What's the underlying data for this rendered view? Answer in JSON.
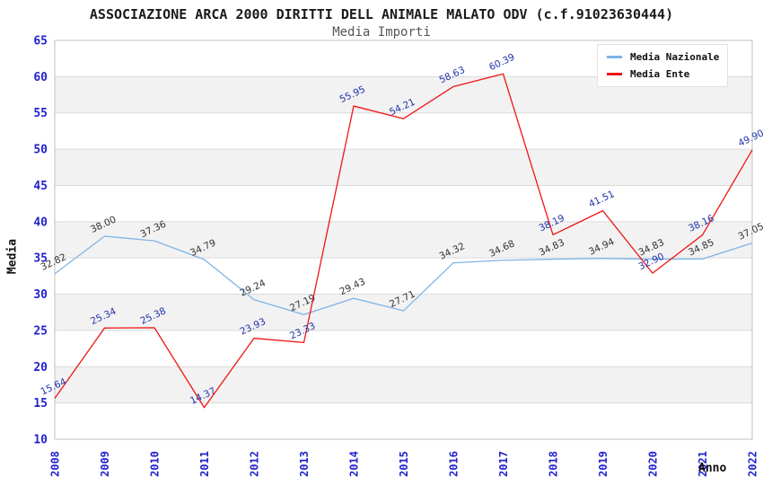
{
  "chart": {
    "title": "ASSOCIAZIONE ARCA 2000 DIRITTI DELL ANIMALE MALATO ODV (c.f.91023630444)",
    "subtitle": "Media Importi",
    "ylabel": "Media",
    "xlabel": "Anno"
  },
  "legend": {
    "items": [
      {
        "label": "Media Nazionale"
      },
      {
        "label": "Media Ente"
      }
    ]
  },
  "chart_data": {
    "type": "line",
    "title": "ASSOCIAZIONE ARCA 2000 DIRITTI DELL ANIMALE MALATO ODV (c.f.91023630444)",
    "subtitle": "Media Importi",
    "xlabel": "Anno",
    "ylabel": "Media",
    "x": [
      2008,
      2009,
      2010,
      2011,
      2012,
      2013,
      2014,
      2015,
      2016,
      2017,
      2018,
      2019,
      2020,
      2021,
      2022
    ],
    "series": [
      {
        "name": "Media Nazionale",
        "color": "#7eb4e7",
        "label_color": "#333333",
        "values": [
          32.82,
          38.0,
          37.36,
          34.79,
          29.24,
          27.19,
          29.43,
          27.71,
          34.32,
          34.68,
          34.83,
          34.94,
          34.83,
          34.85,
          37.05
        ]
      },
      {
        "name": "Media Ente",
        "color": "#f01414",
        "label_color": "#2233aa",
        "values": [
          15.64,
          25.34,
          25.38,
          14.37,
          23.93,
          23.33,
          55.95,
          54.21,
          58.63,
          60.39,
          38.19,
          41.51,
          32.9,
          38.16,
          49.9
        ]
      }
    ],
    "ylim": [
      10,
      65
    ],
    "ytick_step": 5,
    "grid": true,
    "legend_position": "top-right",
    "colors": {
      "tick_label": "#2222cc",
      "band_alt": "#f2f2f2",
      "gridline": "#dadada",
      "plot_border": "#c2c2c2"
    }
  }
}
